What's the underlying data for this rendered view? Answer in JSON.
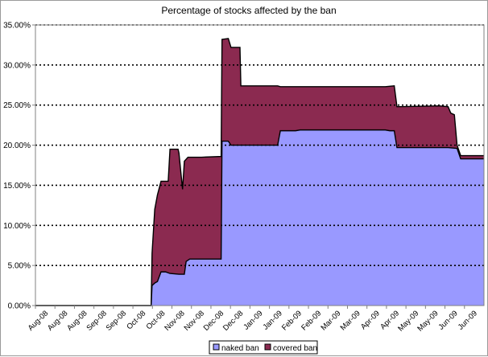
{
  "chart_data": {
    "type": "area",
    "title": "Percentage of stocks affected by the ban",
    "xlabel": "",
    "ylabel": "",
    "ylim": [
      0,
      0.35
    ],
    "yticks": [
      {
        "v": 0.0,
        "label": "0.00%"
      },
      {
        "v": 0.05,
        "label": "5.00%"
      },
      {
        "v": 0.1,
        "label": "10.00%"
      },
      {
        "v": 0.15,
        "label": "15.00%"
      },
      {
        "v": 0.2,
        "label": "20.00%"
      },
      {
        "v": 0.25,
        "label": "25.00%"
      },
      {
        "v": 0.3,
        "label": "30.00%"
      },
      {
        "v": 0.35,
        "label": "35.00%"
      }
    ],
    "xticks": [
      "Aug-08",
      "Aug-08",
      "Aug-08",
      "Sep-08",
      "Sep-08",
      "Oct-08",
      "Oct-08",
      "Nov-08",
      "Nov-08",
      "Dec-08",
      "Dec-08",
      "Jan-09",
      "Jan-09",
      "Feb-09",
      "Feb-09",
      "Mar-09",
      "Mar-09",
      "Apr-09",
      "Apr-09",
      "May-09",
      "May-09",
      "Jun-09",
      "Jun-09"
    ],
    "grid": true,
    "stacked": true,
    "legend_position": "bottom-center",
    "series": [
      {
        "name": "naked ban",
        "color": "#9999ff",
        "points": [
          [
            0,
            0
          ],
          [
            12.9,
            0
          ],
          [
            13.0,
            0.025
          ],
          [
            13.3,
            0.028
          ],
          [
            13.6,
            0.03
          ],
          [
            14.0,
            0.042
          ],
          [
            14.5,
            0.042
          ],
          [
            15.0,
            0.04
          ],
          [
            16.0,
            0.039
          ],
          [
            16.6,
            0.039
          ],
          [
            16.8,
            0.055
          ],
          [
            17.2,
            0.058
          ],
          [
            18.0,
            0.058
          ],
          [
            19.0,
            0.058
          ],
          [
            20.0,
            0.058
          ],
          [
            20.7,
            0.058
          ],
          [
            20.8,
            0.205
          ],
          [
            21.5,
            0.205
          ],
          [
            21.8,
            0.2
          ],
          [
            26.0,
            0.2
          ],
          [
            27.0,
            0.2
          ],
          [
            27.3,
            0.218
          ],
          [
            29.0,
            0.218
          ],
          [
            29.5,
            0.219
          ],
          [
            39.0,
            0.219
          ],
          [
            39.5,
            0.218
          ],
          [
            40.0,
            0.218
          ],
          [
            40.3,
            0.197
          ],
          [
            46.0,
            0.197
          ],
          [
            47.0,
            0.196
          ],
          [
            47.4,
            0.183
          ],
          [
            50.0,
            0.183
          ]
        ]
      },
      {
        "name": "covered ban",
        "color": "#8b2a50",
        "points": [
          [
            0,
            0
          ],
          [
            12.9,
            0
          ],
          [
            13.0,
            0.065
          ],
          [
            13.3,
            0.12
          ],
          [
            13.6,
            0.138
          ],
          [
            14.0,
            0.155
          ],
          [
            14.5,
            0.155
          ],
          [
            14.8,
            0.155
          ],
          [
            15.0,
            0.195
          ],
          [
            15.9,
            0.195
          ],
          [
            16.0,
            0.19
          ],
          [
            16.4,
            0.145
          ],
          [
            16.6,
            0.18
          ],
          [
            17.0,
            0.185
          ],
          [
            18.5,
            0.185
          ],
          [
            20.7,
            0.186
          ],
          [
            20.8,
            0.332
          ],
          [
            21.5,
            0.333
          ],
          [
            21.8,
            0.322
          ],
          [
            22.8,
            0.322
          ],
          [
            22.9,
            0.274
          ],
          [
            26.0,
            0.274
          ],
          [
            27.0,
            0.274
          ],
          [
            27.3,
            0.273
          ],
          [
            39.0,
            0.273
          ],
          [
            40.0,
            0.274
          ],
          [
            40.3,
            0.248
          ],
          [
            45.0,
            0.249
          ],
          [
            46.0,
            0.248
          ],
          [
            46.3,
            0.24
          ],
          [
            46.7,
            0.238
          ],
          [
            47.0,
            0.2
          ],
          [
            47.4,
            0.187
          ],
          [
            50.0,
            0.187
          ]
        ]
      }
    ]
  }
}
